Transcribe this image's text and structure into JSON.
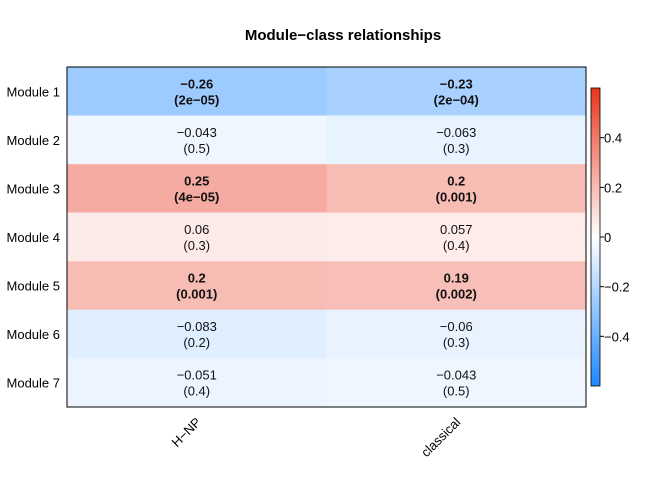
{
  "chart_data": {
    "type": "heatmap",
    "title": "Module−class relationships",
    "columns": [
      "H−NP",
      "classical"
    ],
    "rows": [
      "Module 1",
      "Module 2",
      "Module 3",
      "Module 4",
      "Module 5",
      "Module 6",
      "Module 7"
    ],
    "cells": [
      [
        {
          "value": -0.26,
          "label": "−0.26",
          "p": "(2e−05)",
          "bold": true
        },
        {
          "value": -0.23,
          "label": "−0.23",
          "p": "(2e−04)",
          "bold": true
        }
      ],
      [
        {
          "value": -0.043,
          "label": "−0.043",
          "p": "(0.5)",
          "bold": false
        },
        {
          "value": -0.063,
          "label": "−0.063",
          "p": "(0.3)",
          "bold": false
        }
      ],
      [
        {
          "value": 0.25,
          "label": "0.25",
          "p": "(4e−05)",
          "bold": true
        },
        {
          "value": 0.2,
          "label": "0.2",
          "p": "(0.001)",
          "bold": true
        }
      ],
      [
        {
          "value": 0.06,
          "label": "0.06",
          "p": "(0.3)",
          "bold": false
        },
        {
          "value": 0.057,
          "label": "0.057",
          "p": "(0.4)",
          "bold": false
        }
      ],
      [
        {
          "value": 0.2,
          "label": "0.2",
          "p": "(0.001)",
          "bold": true
        },
        {
          "value": 0.19,
          "label": "0.19",
          "p": "(0.002)",
          "bold": true
        }
      ],
      [
        {
          "value": -0.083,
          "label": "−0.083",
          "p": "(0.2)",
          "bold": false
        },
        {
          "value": -0.06,
          "label": "−0.06",
          "p": "(0.3)",
          "bold": false
        }
      ],
      [
        {
          "value": -0.051,
          "label": "−0.051",
          "p": "(0.4)",
          "bold": false
        },
        {
          "value": -0.043,
          "label": "−0.043",
          "p": "(0.5)",
          "bold": false
        }
      ]
    ],
    "colorscale": {
      "range": [
        -0.6,
        0.6
      ],
      "low_color": "#1E88FF",
      "mid_color": "#FFFFFF",
      "high_color": "#E8361F",
      "ticks": [
        {
          "value": 0.4,
          "label": "0.4"
        },
        {
          "value": 0.2,
          "label": "0.2"
        },
        {
          "value": 0,
          "label": "0"
        },
        {
          "value": -0.2,
          "label": "−0.2"
        },
        {
          "value": -0.4,
          "label": "−0.4"
        }
      ]
    }
  }
}
